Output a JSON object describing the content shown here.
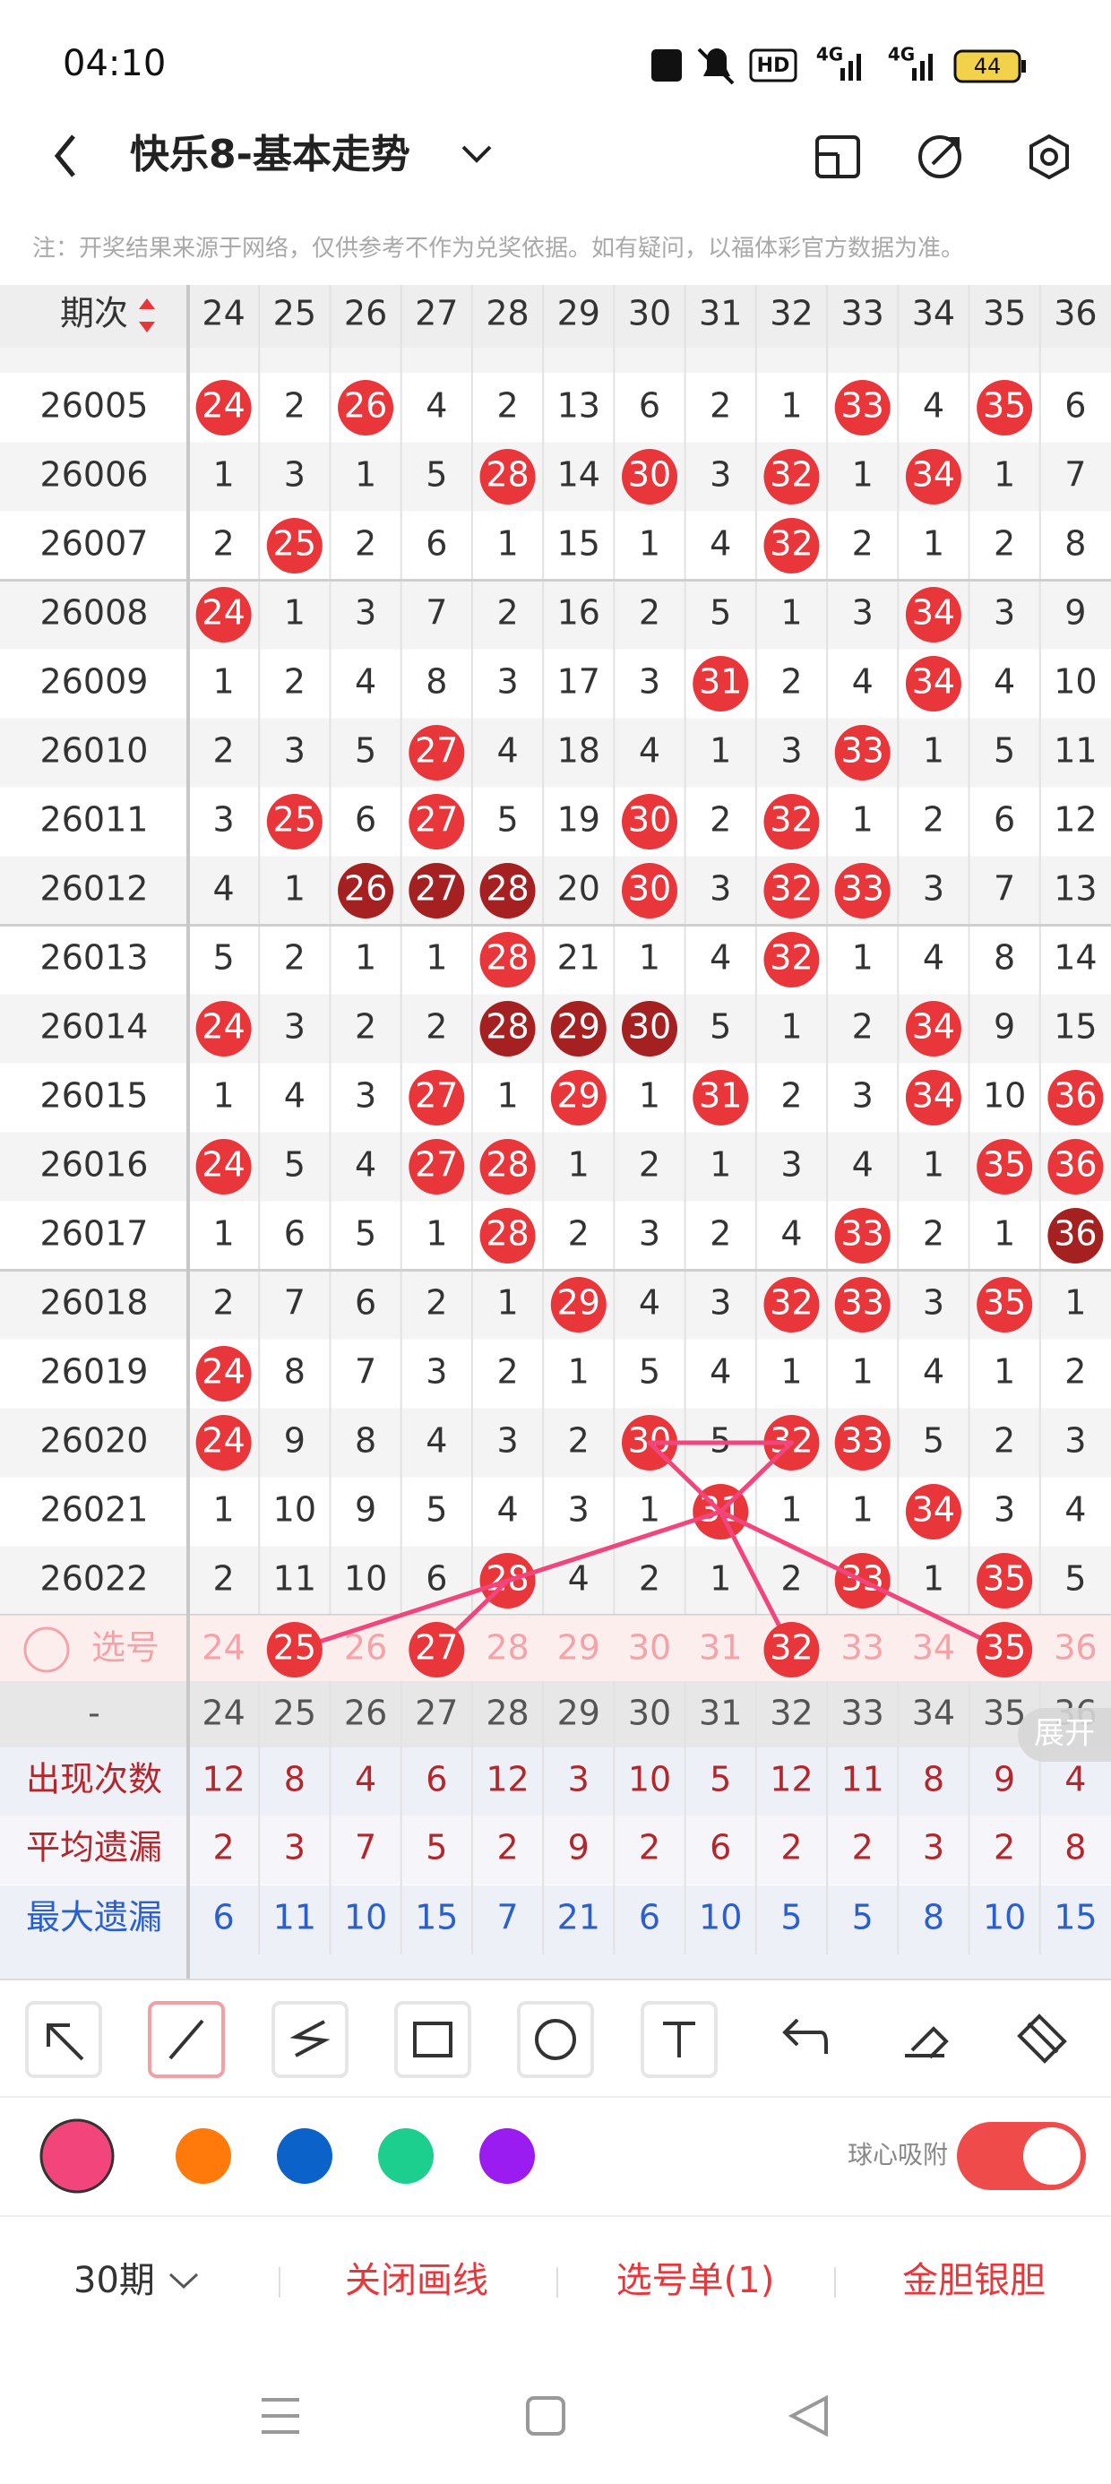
{
  "status_bar": {
    "time": "04:10",
    "hd": "HD",
    "network": [
      "4G",
      "4G"
    ],
    "battery": "44"
  },
  "header": {
    "title": "快乐8-基本走势"
  },
  "note": "注：开奖结果来源于网络，仅供参考不作为兑奖依据。如有疑问，以福体彩官方数据为准。",
  "table": {
    "period_header": "期次",
    "columns": [
      24,
      25,
      26,
      27,
      28,
      29,
      30,
      31,
      32,
      33,
      34,
      35,
      36
    ],
    "rows": [
      {
        "period": "26005",
        "cells": [
          24,
          2,
          26,
          4,
          2,
          13,
          6,
          2,
          1,
          33,
          4,
          35,
          6
        ],
        "red": [
          0,
          2,
          9,
          11
        ]
      },
      {
        "period": "26006",
        "cells": [
          1,
          3,
          1,
          5,
          28,
          14,
          30,
          3,
          32,
          1,
          34,
          1,
          7
        ],
        "red": [
          4,
          6,
          8,
          10
        ]
      },
      {
        "period": "26007",
        "cells": [
          2,
          25,
          2,
          6,
          1,
          15,
          1,
          4,
          32,
          2,
          1,
          2,
          8
        ],
        "red": [
          1,
          8
        ]
      },
      {
        "period": "26008",
        "cells": [
          24,
          1,
          3,
          7,
          2,
          16,
          2,
          5,
          1,
          3,
          34,
          3,
          9
        ],
        "red": [
          0,
          10
        ]
      },
      {
        "period": "26009",
        "cells": [
          1,
          2,
          4,
          8,
          3,
          17,
          3,
          31,
          2,
          4,
          34,
          4,
          10
        ],
        "red": [
          7,
          10
        ]
      },
      {
        "period": "26010",
        "cells": [
          2,
          3,
          5,
          27,
          4,
          18,
          4,
          1,
          3,
          33,
          1,
          5,
          11
        ],
        "red": [
          3,
          9
        ]
      },
      {
        "period": "26011",
        "cells": [
          3,
          25,
          6,
          27,
          5,
          19,
          30,
          2,
          32,
          1,
          2,
          6,
          12
        ],
        "red": [
          1,
          3,
          6,
          8
        ]
      },
      {
        "period": "26012",
        "cells": [
          4,
          1,
          26,
          27,
          28,
          20,
          30,
          3,
          32,
          33,
          3,
          7,
          13
        ],
        "red": [
          6,
          8,
          9
        ],
        "dark": [
          2,
          3,
          4
        ]
      },
      {
        "period": "26013",
        "cells": [
          5,
          2,
          1,
          1,
          28,
          21,
          1,
          4,
          32,
          1,
          4,
          8,
          14
        ],
        "red": [
          4,
          8
        ]
      },
      {
        "period": "26014",
        "cells": [
          24,
          3,
          2,
          2,
          28,
          29,
          30,
          5,
          1,
          2,
          34,
          9,
          15
        ],
        "red": [
          0,
          10
        ],
        "dark": [
          4,
          5,
          6
        ]
      },
      {
        "period": "26015",
        "cells": [
          1,
          4,
          3,
          27,
          1,
          29,
          1,
          31,
          2,
          3,
          34,
          10,
          36
        ],
        "red": [
          3,
          5,
          7,
          10,
          12
        ]
      },
      {
        "period": "26016",
        "cells": [
          24,
          5,
          4,
          27,
          28,
          1,
          2,
          1,
          3,
          4,
          1,
          35,
          36
        ],
        "red": [
          0,
          3,
          4,
          11,
          12
        ]
      },
      {
        "period": "26017",
        "cells": [
          1,
          6,
          5,
          1,
          28,
          2,
          3,
          2,
          4,
          33,
          2,
          1,
          36
        ],
        "red": [
          4,
          9
        ],
        "dark": [
          12
        ]
      },
      {
        "period": "26018",
        "cells": [
          2,
          7,
          6,
          2,
          1,
          29,
          4,
          3,
          32,
          33,
          3,
          35,
          1
        ],
        "red": [
          5,
          8,
          9,
          11
        ]
      },
      {
        "period": "26019",
        "cells": [
          24,
          8,
          7,
          3,
          2,
          1,
          5,
          4,
          1,
          1,
          4,
          1,
          2
        ],
        "red": [
          0
        ]
      },
      {
        "period": "26020",
        "cells": [
          24,
          9,
          8,
          4,
          3,
          2,
          30,
          5,
          32,
          33,
          5,
          2,
          3
        ],
        "red": [
          0,
          6,
          8,
          9
        ]
      },
      {
        "period": "26021",
        "cells": [
          1,
          10,
          9,
          5,
          4,
          3,
          1,
          31,
          1,
          1,
          34,
          3,
          4
        ],
        "red": [
          7,
          10
        ]
      },
      {
        "period": "26022",
        "cells": [
          2,
          11,
          10,
          6,
          28,
          4,
          2,
          1,
          2,
          33,
          1,
          35,
          5
        ],
        "red": [
          4,
          9,
          11
        ]
      }
    ],
    "pick_row": {
      "label": "选号",
      "selected": [
        1,
        3,
        8,
        11
      ]
    },
    "repeat_row": {
      "label": "-"
    },
    "expand": "展开",
    "stats": [
      {
        "label": "出现次数",
        "values": [
          12,
          8,
          4,
          6,
          12,
          3,
          10,
          5,
          12,
          11,
          8,
          9,
          4
        ],
        "color": "#b3262b"
      },
      {
        "label": "平均遗漏",
        "values": [
          2,
          3,
          7,
          5,
          2,
          9,
          2,
          6,
          2,
          2,
          3,
          2,
          8
        ],
        "color": "#b3262b"
      },
      {
        "label": "最大遗漏",
        "values": [
          6,
          11,
          10,
          15,
          7,
          21,
          6,
          10,
          5,
          5,
          8,
          10,
          15
        ],
        "color": "#2b5fcc"
      }
    ]
  },
  "palette": {
    "colors": [
      "#f2457c",
      "#ff7a0a",
      "#0b62c9",
      "#1ccf8f",
      "#9b1cf0"
    ],
    "snap_label": "球心吸附",
    "snap_on": true
  },
  "footer": {
    "period": "30期",
    "actions": [
      "关闭画线",
      "选号单(1)",
      "金胆银胆"
    ]
  }
}
